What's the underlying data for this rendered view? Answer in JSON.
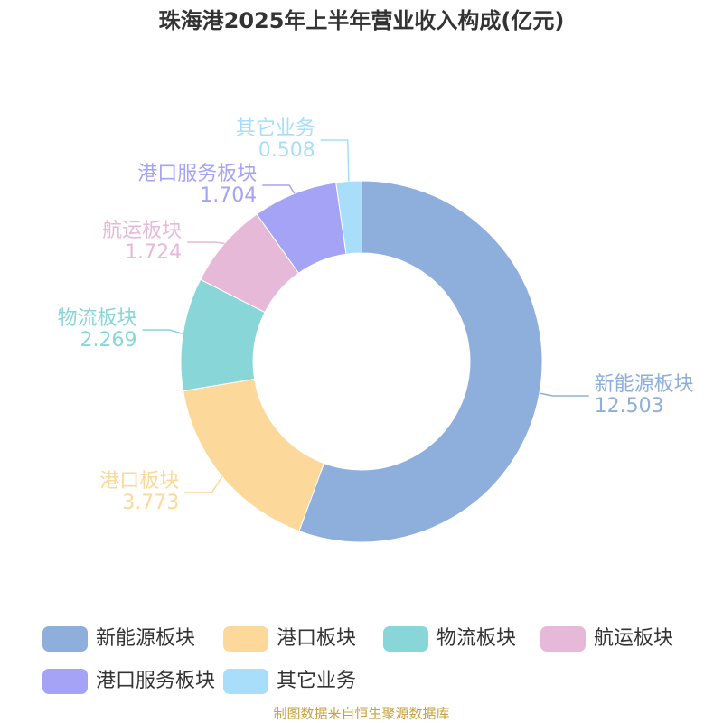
{
  "chart_data": {
    "type": "donut",
    "title": "珠海港2025年上半年营业收入构成(亿元)",
    "categories": [
      "新能源板块",
      "港口板块",
      "物流板块",
      "航运板块",
      "港口服务板块",
      "其它业务"
    ],
    "values": [
      12.503,
      3.773,
      2.269,
      1.724,
      1.704,
      0.508
    ],
    "colors": [
      "#8eaedb",
      "#fdd89b",
      "#88d6d8",
      "#e6b9d8",
      "#a4a3f5",
      "#a8def9"
    ],
    "source": "制图数据来自恒生聚源数据库"
  }
}
